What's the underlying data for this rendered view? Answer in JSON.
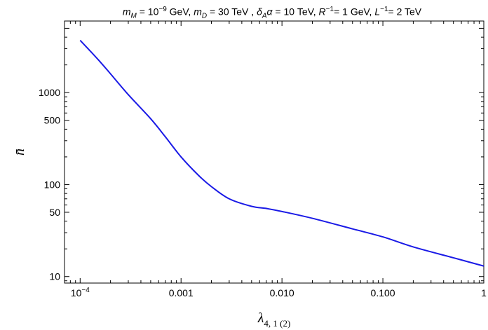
{
  "chart_data": {
    "type": "line",
    "title_parts": {
      "mM": "m",
      "mM_sub": "M",
      "mM_val": " = 10",
      "mM_exp": "−9",
      "mM_unit": " GeV, ",
      "mD": "m",
      "mD_sub": "D",
      "mD_val": " = 30 TeV , ",
      "delta": "δ",
      "delta_sub": "A",
      "alpha": "α",
      "delta_val": " = 10 TeV, ",
      "R": "R",
      "R_exp": "−1",
      "R_val": "= 1 GeV, ",
      "L": "L",
      "L_exp": "−1",
      "L_val": "= 2 TeV"
    },
    "xlabel": "λ",
    "xlabel_sub": "4, 1 (2)",
    "ylabel": "n̄",
    "x_scale": "log",
    "y_scale": "log",
    "xlim": [
      7e-05,
      1.0
    ],
    "ylim": [
      8.5,
      6000
    ],
    "x_ticks": [
      {
        "value": 0.0001,
        "label": "10",
        "exp": "−4"
      },
      {
        "value": 0.001,
        "label": "0.001"
      },
      {
        "value": 0.01,
        "label": "0.010"
      },
      {
        "value": 0.1,
        "label": "0.100"
      },
      {
        "value": 1,
        "label": "1"
      }
    ],
    "y_ticks": [
      {
        "value": 10,
        "label": "10"
      },
      {
        "value": 50,
        "label": "50"
      },
      {
        "value": 100,
        "label": "100"
      },
      {
        "value": 500,
        "label": "500"
      },
      {
        "value": 1000,
        "label": "1000"
      }
    ],
    "series": [
      {
        "color": "#1a1ae6",
        "x": [
          0.0001,
          0.00015,
          0.0002,
          0.0003,
          0.0005,
          0.0007,
          0.001,
          0.0015,
          0.002,
          0.003,
          0.005,
          0.007,
          0.01,
          0.02,
          0.05,
          0.1,
          0.2,
          0.5,
          1.0
        ],
        "y": [
          3700,
          2300,
          1600,
          950,
          520,
          330,
          200,
          125,
          95,
          70,
          58,
          55,
          51,
          43,
          33,
          27,
          21,
          16,
          13
        ]
      }
    ],
    "grid": false,
    "legend": "none"
  }
}
